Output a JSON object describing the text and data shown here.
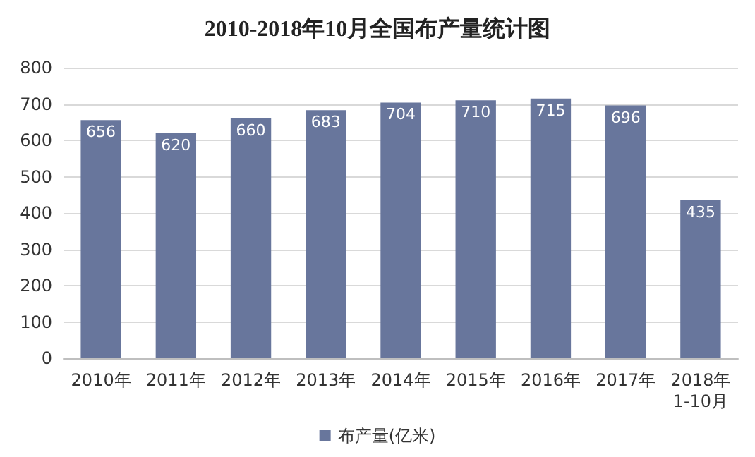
{
  "chart_data": {
    "type": "bar",
    "title": "2010-2018年10月全国布产量统计图",
    "categories": [
      "2010年",
      "2011年",
      "2012年",
      "2013年",
      "2014年",
      "2015年",
      "2016年",
      "2017年",
      "2018年1-10月"
    ],
    "series": [
      {
        "name": "布产量(亿米)",
        "color": "#68769c",
        "values": [
          656,
          620,
          660,
          683,
          704,
          710,
          715,
          696,
          435
        ]
      }
    ],
    "ylim": [
      0,
      800
    ],
    "yticks": [
      0,
      100,
      200,
      300,
      400,
      500,
      600,
      700,
      800
    ],
    "grid": "y",
    "legend": "bottom",
    "data_labels": true
  }
}
